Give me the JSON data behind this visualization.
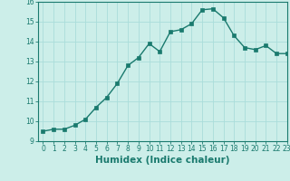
{
  "x": [
    0,
    1,
    2,
    3,
    4,
    5,
    6,
    7,
    8,
    9,
    10,
    11,
    12,
    13,
    14,
    15,
    16,
    17,
    18,
    19,
    20,
    21,
    22,
    23
  ],
  "y": [
    9.5,
    9.6,
    9.6,
    9.8,
    10.1,
    10.7,
    11.2,
    11.9,
    12.8,
    13.2,
    13.9,
    13.5,
    14.5,
    14.6,
    14.9,
    15.6,
    15.65,
    15.2,
    14.3,
    13.7,
    13.6,
    13.8,
    13.4,
    13.4
  ],
  "line_color": "#1a7a6e",
  "marker_color": "#1a7a6e",
  "bg_color": "#cceee9",
  "grid_color": "#aaddda",
  "xlabel": "Humidex (Indice chaleur)",
  "ylim": [
    9,
    16
  ],
  "xlim": [
    -0.5,
    23
  ],
  "yticks": [
    9,
    10,
    11,
    12,
    13,
    14,
    15,
    16
  ],
  "xticks": [
    0,
    1,
    2,
    3,
    4,
    5,
    6,
    7,
    8,
    9,
    10,
    11,
    12,
    13,
    14,
    15,
    16,
    17,
    18,
    19,
    20,
    21,
    22,
    23
  ],
  "tick_label_fontsize": 5.5,
  "xlabel_fontsize": 7.5,
  "marker_size": 2.2,
  "line_width": 1.0
}
